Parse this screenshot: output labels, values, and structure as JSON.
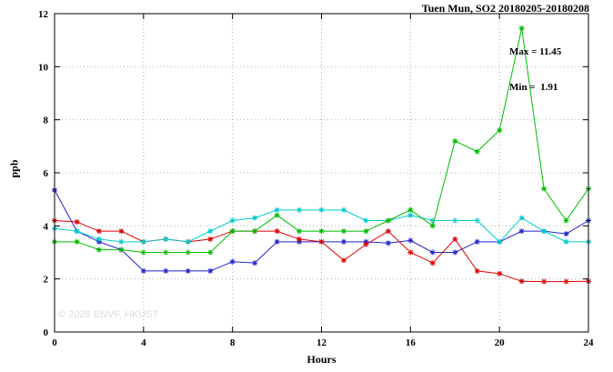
{
  "title": "Tuen Mun, SO2 20180205-20180208",
  "annotations": {
    "max_label": "Max = 11.45",
    "min_label": "Min =  1.91"
  },
  "watermark": "© 2026 ENVF, HKUST",
  "chart_data": {
    "type": "line",
    "title": "Tuen Mun, SO2 20180205-20180208",
    "xlabel": "Hours",
    "ylabel": "ppb",
    "xlim": [
      0,
      24
    ],
    "ylim": [
      0,
      12
    ],
    "xticks": [
      0,
      4,
      8,
      12,
      16,
      20,
      24
    ],
    "yticks": [
      0,
      2,
      4,
      6,
      8,
      10,
      12
    ],
    "grid": true,
    "legend_position": "none",
    "marker": "asterisk",
    "stats": {
      "max": 11.45,
      "min": 1.91
    },
    "x": [
      0,
      1,
      2,
      3,
      4,
      5,
      6,
      7,
      8,
      9,
      10,
      11,
      12,
      13,
      14,
      15,
      16,
      17,
      18,
      19,
      20,
      21,
      22,
      23,
      24
    ],
    "series": [
      {
        "name": "blue",
        "color": "#2222cc",
        "values": [
          5.35,
          3.8,
          3.4,
          3.1,
          2.3,
          2.3,
          2.3,
          2.3,
          2.65,
          2.6,
          3.4,
          3.4,
          3.4,
          3.4,
          3.4,
          3.35,
          3.45,
          3.0,
          3.0,
          3.4,
          3.4,
          3.8,
          3.8,
          3.7,
          4.2
        ]
      },
      {
        "name": "red",
        "color": "#dd0000",
        "values": [
          4.2,
          4.15,
          3.8,
          3.8,
          3.4,
          3.5,
          3.4,
          3.5,
          3.8,
          3.8,
          3.8,
          3.5,
          3.4,
          2.7,
          3.3,
          3.8,
          3.0,
          2.6,
          3.5,
          2.3,
          2.2,
          1.91,
          1.9,
          1.9,
          1.91
        ]
      },
      {
        "name": "cyan",
        "color": "#00cccc",
        "values": [
          3.9,
          3.8,
          3.5,
          3.4,
          3.4,
          3.5,
          3.4,
          3.8,
          4.2,
          4.3,
          4.6,
          4.6,
          4.6,
          4.6,
          4.2,
          4.2,
          4.4,
          4.2,
          4.2,
          4.2,
          3.4,
          4.3,
          3.8,
          3.4,
          3.4
        ]
      },
      {
        "name": "green",
        "color": "#00bb00",
        "values": [
          3.4,
          3.4,
          3.1,
          3.1,
          3.0,
          3.0,
          3.0,
          3.0,
          3.8,
          3.8,
          4.4,
          3.8,
          3.8,
          3.8,
          3.8,
          4.2,
          4.6,
          4.0,
          7.2,
          6.8,
          7.6,
          11.45,
          5.4,
          4.2,
          5.4
        ]
      }
    ]
  }
}
